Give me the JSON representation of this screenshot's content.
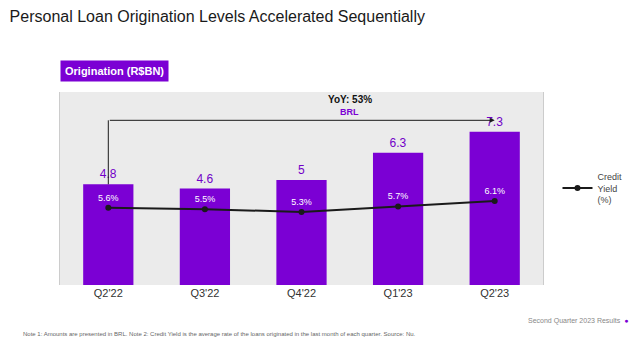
{
  "chart_data": {
    "type": "bar",
    "title": "Personal Loan Origination Levels Accelerated Sequentially",
    "ylabel": "Origination (R$BN)",
    "categories": [
      "Q2'22",
      "Q3'22",
      "Q4'22",
      "Q1'23",
      "Q2'23"
    ],
    "series": [
      {
        "type": "bar",
        "color": "#7B00D4",
        "values": [
          4.8,
          4.6,
          5.0,
          6.3,
          7.3
        ],
        "data_labels": true
      },
      {
        "type": "line",
        "name": "Credit\nYield\n(%)",
        "color": "#1a1a1a",
        "axis": "y2",
        "marker": "circle",
        "values": [
          5.6,
          5.5,
          5.3,
          5.7,
          6.1
        ],
        "value_labels": [
          "5.6%",
          "5.5%",
          "5.3%",
          "5.7%",
          "6.1%"
        ],
        "data_labels": true
      }
    ],
    "ylim": [
      0,
      9.2
    ],
    "y2lim": [
      0,
      14
    ],
    "tick_labels": "x",
    "grid": false,
    "legend": "right",
    "annotations": [
      "YoY: 53%",
      "BRL"
    ],
    "footnote": "Note 1: Amounts are presented in BRL. Note 2: Credit Yield is the average rate of the loans originated in the last month of each quarter. Source: Nu.",
    "source": "Second Quarter 2023 Results",
    "logo": "●"
  }
}
